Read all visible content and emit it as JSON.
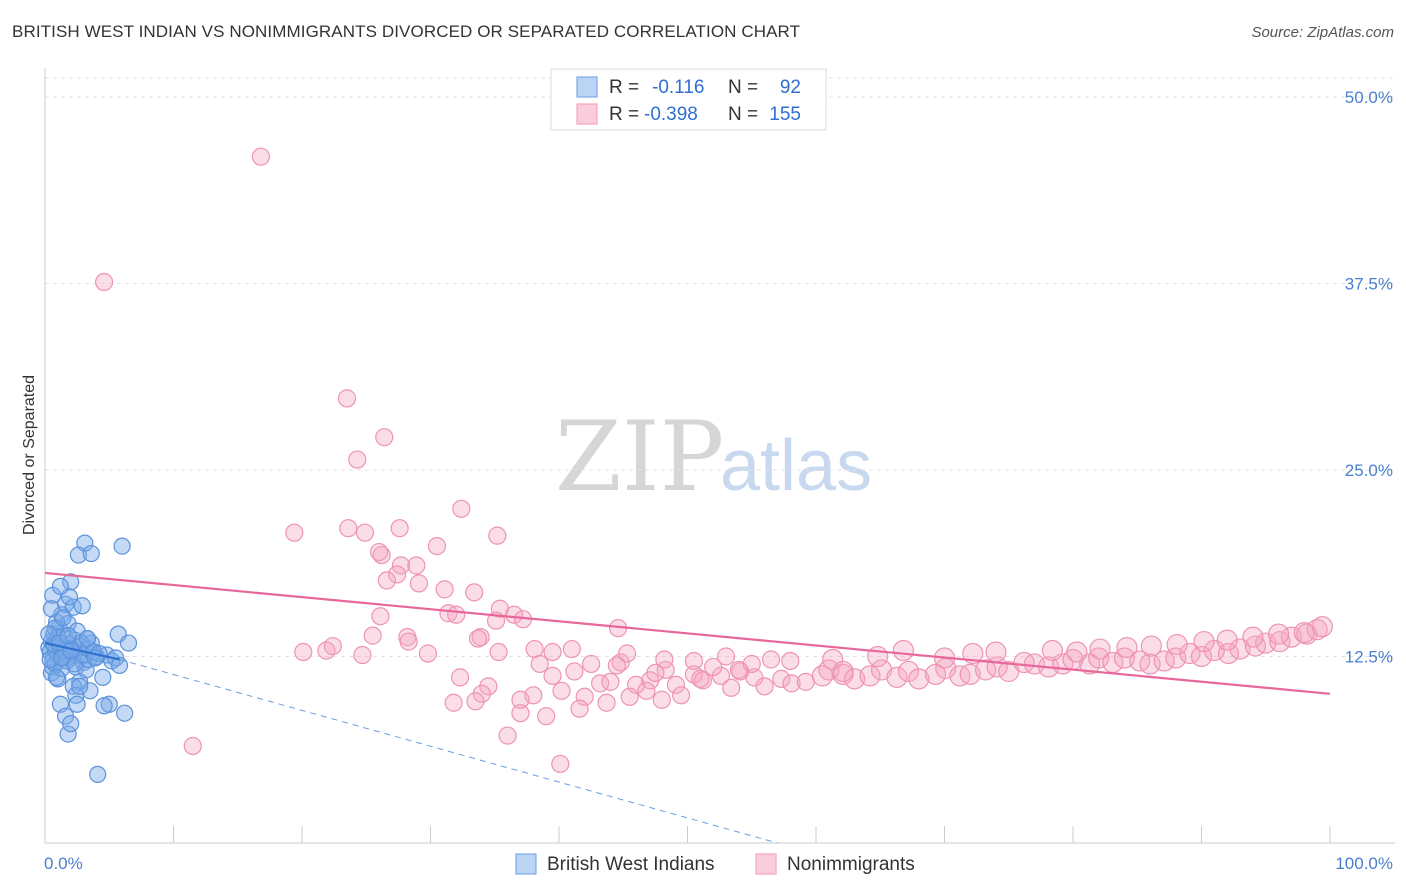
{
  "title": "BRITISH WEST INDIAN VS NONIMMIGRANTS DIVORCED OR SEPARATED CORRELATION CHART",
  "source": "Source: ZipAtlas.com",
  "watermark": {
    "zip": "ZIP",
    "atlas": "atlas"
  },
  "colors": {
    "blue": "#7aaae8",
    "blue_line": "#3a78d6",
    "pink": "#f4a6bf",
    "pink_line": "#e8679a",
    "axis_text": "#4a7fd0"
  },
  "legend": {
    "rows": [
      {
        "r_label": "R =",
        "r_value": "-0.116",
        "n_label": "N =",
        "n_value": "92",
        "color": "blue"
      },
      {
        "r_label": "R =",
        "r_value": "-0.398",
        "n_label": "N =",
        "n_value": "155",
        "color": "pink"
      }
    ]
  },
  "bottom_legend": [
    "British West Indians",
    "Nonimmigrants"
  ],
  "chart_data": {
    "type": "scatter",
    "title": "BRITISH WEST INDIAN VS NONIMMIGRANTS DIVORCED OR SEPARATED CORRELATION CHART",
    "xlabel": "",
    "ylabel": "Divorced or Separated",
    "xlim": [
      0,
      100
    ],
    "ylim": [
      0,
      50
    ],
    "x_tick_labels": [
      "0.0%",
      "100.0%"
    ],
    "y_ticks": [
      12.5,
      25.0,
      37.5,
      50.0
    ],
    "y_tick_labels": [
      "12.5%",
      "25.0%",
      "37.5%",
      "50.0%"
    ],
    "grid": "horizontal dashed",
    "legend_position": "top-center",
    "series": [
      {
        "name": "British West Indians",
        "color": "#7aaae8",
        "trend": {
          "x": [
            0,
            5.8
          ],
          "y": [
            13.4,
            12.3
          ],
          "dashed_extension_to": [
            57,
            0
          ]
        },
        "points": [
          [
            0.3,
            13.1
          ],
          [
            0.4,
            12.8
          ],
          [
            0.5,
            13.5
          ],
          [
            0.6,
            12.2
          ],
          [
            0.7,
            14.0
          ],
          [
            0.8,
            12.9
          ],
          [
            0.9,
            13.6
          ],
          [
            1.0,
            12.5
          ],
          [
            1.1,
            14.4
          ],
          [
            1.2,
            13.0
          ],
          [
            1.3,
            15.3
          ],
          [
            1.4,
            12.7
          ],
          [
            1.5,
            13.9
          ],
          [
            1.6,
            16.0
          ],
          [
            1.7,
            12.4
          ],
          [
            1.8,
            14.7
          ],
          [
            1.9,
            13.3
          ],
          [
            2.0,
            17.5
          ],
          [
            2.1,
            12.9
          ],
          [
            2.2,
            15.8
          ],
          [
            2.3,
            13.6
          ],
          [
            2.4,
            11.8
          ],
          [
            2.5,
            14.2
          ],
          [
            2.6,
            12.6
          ],
          [
            2.7,
            10.8
          ],
          [
            2.8,
            13.2
          ],
          [
            2.9,
            15.9
          ],
          [
            3.0,
            12.1
          ],
          [
            3.1,
            20.1
          ],
          [
            3.2,
            11.6
          ],
          [
            3.3,
            13.7
          ],
          [
            3.4,
            12.3
          ],
          [
            3.5,
            10.2
          ],
          [
            3.6,
            13.4
          ],
          [
            3.7,
            12.8
          ],
          [
            4.0,
            12.5
          ],
          [
            4.5,
            11.1
          ],
          [
            4.8,
            12.6
          ],
          [
            5.0,
            9.3
          ],
          [
            5.2,
            12.2
          ],
          [
            5.5,
            12.4
          ],
          [
            5.7,
            14.0
          ],
          [
            5.8,
            11.9
          ],
          [
            6.0,
            19.9
          ],
          [
            6.2,
            8.7
          ],
          [
            6.5,
            13.4
          ],
          [
            0.5,
            11.4
          ],
          [
            0.6,
            11.8
          ],
          [
            0.8,
            12.0
          ],
          [
            1.0,
            11.0
          ],
          [
            1.2,
            9.3
          ],
          [
            1.4,
            12.5
          ],
          [
            1.6,
            8.5
          ],
          [
            1.8,
            7.3
          ],
          [
            2.0,
            8.0
          ],
          [
            2.2,
            10.5
          ],
          [
            2.4,
            9.9
          ],
          [
            2.6,
            19.3
          ],
          [
            1.3,
            11.7
          ],
          [
            0.7,
            13.3
          ],
          [
            0.9,
            14.8
          ],
          [
            1.5,
            13.1
          ],
          [
            1.7,
            12.2
          ],
          [
            1.9,
            16.5
          ],
          [
            2.1,
            13.0
          ],
          [
            2.3,
            12.0
          ],
          [
            0.4,
            12.3
          ],
          [
            0.6,
            16.6
          ],
          [
            0.8,
            14.4
          ],
          [
            1.0,
            13.8
          ],
          [
            1.2,
            17.2
          ],
          [
            1.4,
            15.1
          ],
          [
            1.6,
            12.9
          ],
          [
            2.8,
            13.4
          ],
          [
            3.0,
            12.6
          ],
          [
            3.4,
            13.0
          ],
          [
            3.8,
            12.8
          ],
          [
            4.2,
            12.7
          ],
          [
            0.5,
            15.7
          ],
          [
            0.3,
            14.0
          ],
          [
            4.1,
            4.6
          ],
          [
            3.6,
            19.4
          ],
          [
            1.1,
            13.4
          ],
          [
            2.5,
            9.3
          ],
          [
            3.9,
            12.4
          ],
          [
            1.8,
            13.9
          ],
          [
            0.9,
            11.1
          ],
          [
            2.7,
            10.5
          ],
          [
            4.6,
            9.2
          ],
          [
            3.3,
            13.7
          ],
          [
            1.3,
            12.4
          ],
          [
            2.0,
            12.9
          ]
        ]
      },
      {
        "name": "Nonimmigrants",
        "color": "#f4a6bf",
        "trend": {
          "x": [
            0,
            100
          ],
          "y": [
            18.1,
            10.0
          ]
        },
        "points": [
          [
            16.8,
            46.0
          ],
          [
            4.6,
            37.6
          ],
          [
            23.5,
            29.8
          ],
          [
            26.4,
            27.2
          ],
          [
            24.3,
            25.7
          ],
          [
            32.4,
            22.4
          ],
          [
            19.4,
            20.8
          ],
          [
            24.9,
            20.8
          ],
          [
            23.6,
            21.1
          ],
          [
            27.6,
            21.1
          ],
          [
            26.2,
            19.3
          ],
          [
            30.5,
            19.9
          ],
          [
            35.2,
            20.6
          ],
          [
            31.1,
            17.0
          ],
          [
            26.0,
            19.5
          ],
          [
            27.7,
            18.6
          ],
          [
            28.9,
            18.6
          ],
          [
            27.4,
            18.0
          ],
          [
            26.6,
            17.6
          ],
          [
            29.1,
            17.4
          ],
          [
            33.4,
            16.8
          ],
          [
            31.4,
            15.4
          ],
          [
            35.4,
            15.7
          ],
          [
            26.1,
            15.2
          ],
          [
            32.0,
            15.3
          ],
          [
            36.5,
            15.3
          ],
          [
            35.1,
            14.9
          ],
          [
            37.2,
            15.0
          ],
          [
            44.6,
            14.4
          ],
          [
            33.9,
            13.8
          ],
          [
            28.2,
            13.8
          ],
          [
            33.7,
            13.7
          ],
          [
            25.5,
            13.9
          ],
          [
            38.1,
            13.0
          ],
          [
            41.0,
            13.0
          ],
          [
            21.9,
            12.9
          ],
          [
            20.1,
            12.8
          ],
          [
            24.7,
            12.6
          ],
          [
            22.4,
            13.2
          ],
          [
            34.5,
            10.5
          ],
          [
            32.3,
            11.1
          ],
          [
            35.3,
            12.8
          ],
          [
            38.5,
            12.0
          ],
          [
            39.5,
            11.2
          ],
          [
            41.2,
            11.5
          ],
          [
            42.5,
            12.0
          ],
          [
            43.2,
            10.7
          ],
          [
            44.8,
            12.1
          ],
          [
            46.0,
            10.6
          ],
          [
            47.1,
            10.9
          ],
          [
            48.3,
            11.6
          ],
          [
            49.1,
            10.6
          ],
          [
            50.5,
            11.3
          ],
          [
            51.2,
            10.9
          ],
          [
            52.6,
            11.2
          ],
          [
            53.4,
            10.4
          ],
          [
            54.1,
            11.5
          ],
          [
            55.2,
            11.1
          ],
          [
            56.0,
            10.5
          ],
          [
            57.3,
            11.0
          ],
          [
            58.1,
            10.7
          ],
          [
            59.2,
            10.8
          ],
          [
            60.5,
            11.2
          ],
          [
            61.0,
            11.6
          ],
          [
            62.1,
            11.3
          ],
          [
            63.0,
            11.0
          ],
          [
            64.2,
            11.2
          ],
          [
            65.1,
            11.6
          ],
          [
            66.3,
            11.1
          ],
          [
            67.2,
            11.5
          ],
          [
            68.0,
            11.0
          ],
          [
            69.3,
            11.3
          ],
          [
            70.1,
            11.7
          ],
          [
            71.2,
            11.2
          ],
          [
            72.0,
            11.3
          ],
          [
            73.2,
            11.6
          ],
          [
            74.1,
            11.8
          ],
          [
            75.0,
            11.5
          ],
          [
            76.2,
            12.1
          ],
          [
            77.0,
            12.0
          ],
          [
            78.1,
            11.8
          ],
          [
            79.2,
            12.0
          ],
          [
            80.0,
            12.3
          ],
          [
            81.3,
            12.0
          ],
          [
            82.0,
            12.4
          ],
          [
            83.1,
            12.1
          ],
          [
            84.0,
            12.4
          ],
          [
            85.2,
            12.2
          ],
          [
            86.0,
            12.0
          ],
          [
            87.1,
            12.2
          ],
          [
            88.0,
            12.4
          ],
          [
            89.1,
            12.7
          ],
          [
            90.0,
            12.5
          ],
          [
            91.0,
            12.9
          ],
          [
            92.1,
            12.7
          ],
          [
            93.0,
            13.0
          ],
          [
            94.2,
            13.2
          ],
          [
            95.0,
            13.4
          ],
          [
            96.1,
            13.5
          ],
          [
            97.0,
            13.8
          ],
          [
            98.2,
            14.0
          ],
          [
            99.0,
            14.3
          ],
          [
            40.2,
            10.2
          ],
          [
            42.0,
            9.8
          ],
          [
            43.7,
            9.4
          ],
          [
            45.5,
            9.8
          ],
          [
            46.8,
            10.2
          ],
          [
            48.0,
            9.6
          ],
          [
            49.5,
            9.9
          ],
          [
            41.6,
            9.0
          ],
          [
            38.0,
            9.9
          ],
          [
            34.0,
            10.0
          ],
          [
            31.8,
            9.4
          ],
          [
            33.5,
            9.5
          ],
          [
            37.0,
            9.6
          ],
          [
            39.0,
            8.5
          ],
          [
            36.0,
            7.2
          ],
          [
            39.5,
            12.8
          ],
          [
            45.3,
            12.7
          ],
          [
            48.2,
            12.3
          ],
          [
            50.5,
            12.2
          ],
          [
            55.0,
            12.0
          ],
          [
            58.0,
            12.2
          ],
          [
            61.3,
            12.3
          ],
          [
            62.1,
            11.5
          ],
          [
            64.8,
            12.5
          ],
          [
            66.8,
            12.9
          ],
          [
            70.0,
            12.4
          ],
          [
            72.2,
            12.7
          ],
          [
            74.0,
            12.8
          ],
          [
            78.4,
            12.9
          ],
          [
            80.3,
            12.8
          ],
          [
            82.1,
            13.0
          ],
          [
            84.2,
            13.1
          ],
          [
            86.1,
            13.2
          ],
          [
            88.1,
            13.3
          ],
          [
            90.2,
            13.5
          ],
          [
            92.0,
            13.6
          ],
          [
            94.0,
            13.8
          ],
          [
            96.0,
            14.0
          ],
          [
            98.0,
            14.1
          ],
          [
            99.4,
            14.5
          ],
          [
            52.0,
            11.8
          ],
          [
            54.0,
            11.6
          ],
          [
            56.5,
            12.3
          ],
          [
            11.5,
            6.5
          ],
          [
            40.1,
            5.3
          ],
          [
            37.0,
            8.7
          ],
          [
            44.0,
            10.8
          ],
          [
            47.5,
            11.4
          ],
          [
            51.0,
            11.0
          ],
          [
            53.0,
            12.5
          ],
          [
            28.3,
            13.5
          ],
          [
            29.8,
            12.7
          ],
          [
            44.5,
            11.9
          ]
        ]
      }
    ]
  }
}
